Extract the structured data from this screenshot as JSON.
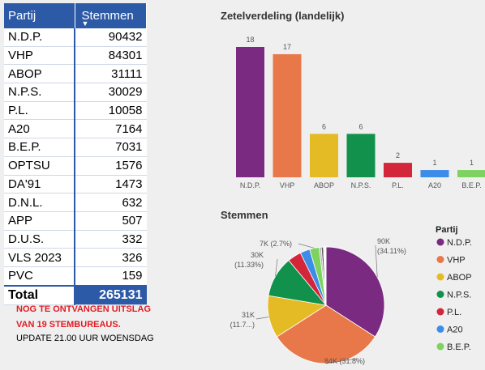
{
  "table": {
    "col_party": "Partij",
    "col_votes": "Stemmen",
    "rows": [
      {
        "party": "N.D.P.",
        "votes": "90432"
      },
      {
        "party": "VHP",
        "votes": "84301"
      },
      {
        "party": "ABOP",
        "votes": "31111"
      },
      {
        "party": "N.P.S.",
        "votes": "30029"
      },
      {
        "party": "P.L.",
        "votes": "10058"
      },
      {
        "party": "A20",
        "votes": "7164"
      },
      {
        "party": "B.E.P.",
        "votes": "7031"
      },
      {
        "party": "OPTSU",
        "votes": "1576"
      },
      {
        "party": "DA'91",
        "votes": "1473"
      },
      {
        "party": "D.N.L.",
        "votes": "632"
      },
      {
        "party": "APP",
        "votes": "507"
      },
      {
        "party": "D.U.S.",
        "votes": "332"
      },
      {
        "party": "VLS 2023",
        "votes": "326"
      },
      {
        "party": "PVC",
        "votes": "159"
      }
    ],
    "total_label": "Total",
    "total_value": "265131"
  },
  "notes": {
    "line1": "NOG TE ONTVANGEN UITSLAG",
    "line2": "VAN 19 STEMBUREAUS.",
    "line3": "UPDATE 21.00 UUR WOENSDAG"
  },
  "chart_data": [
    {
      "type": "bar",
      "title": "Zetelverdeling (landelijk)",
      "categories": [
        "N.D.P.",
        "VHP",
        "ABOP",
        "N.P.S.",
        "P.L.",
        "A20",
        "B.E.P."
      ],
      "values": [
        18,
        17,
        6,
        6,
        2,
        1,
        1
      ],
      "colors": [
        "#7b2a82",
        "#e8784a",
        "#e5bb25",
        "#12914c",
        "#d3263a",
        "#3c8de8",
        "#7dd35e"
      ],
      "ylim": [
        0,
        18
      ]
    },
    {
      "type": "pie",
      "title": "Stemmen",
      "legend_title": "Partij",
      "legend_position": "right",
      "slices": [
        {
          "name": "N.D.P.",
          "value": 90432,
          "color": "#7b2a82",
          "label": "90K",
          "pct": "(34.11%)"
        },
        {
          "name": "VHP",
          "value": 84301,
          "color": "#e8784a",
          "label": "84K (31.8%)"
        },
        {
          "name": "ABOP",
          "value": 31111,
          "color": "#e5bb25",
          "label": "31K",
          "pct": "(11.7...)"
        },
        {
          "name": "N.P.S.",
          "value": 30029,
          "color": "#12914c",
          "label": "30K",
          "pct": "(11.33%)"
        },
        {
          "name": "P.L.",
          "value": 10058,
          "color": "#d3263a"
        },
        {
          "name": "A20",
          "value": 7164,
          "color": "#3c8de8"
        },
        {
          "name": "B.E.P.",
          "value": 7031,
          "color": "#7dd35e",
          "label": "7K (2.7%)"
        },
        {
          "name": "OPTSU",
          "value": 1576,
          "color": "#b8b8b8"
        },
        {
          "name": "DA'91",
          "value": 1473,
          "color": "#555555"
        },
        {
          "name": "D.N.L.",
          "value": 632,
          "color": "#c4a0d8"
        },
        {
          "name": "APP",
          "value": 507,
          "color": "#8ab4e0"
        },
        {
          "name": "D.U.S.",
          "value": 332,
          "color": "#f5c6a0"
        },
        {
          "name": "VLS 2023",
          "value": 326,
          "color": "#666"
        },
        {
          "name": "PVC",
          "value": 159,
          "color": "#999"
        }
      ],
      "legend": [
        "N.D.P.",
        "VHP",
        "ABOP",
        "N.P.S.",
        "P.L.",
        "A20",
        "B.E.P."
      ]
    }
  ]
}
